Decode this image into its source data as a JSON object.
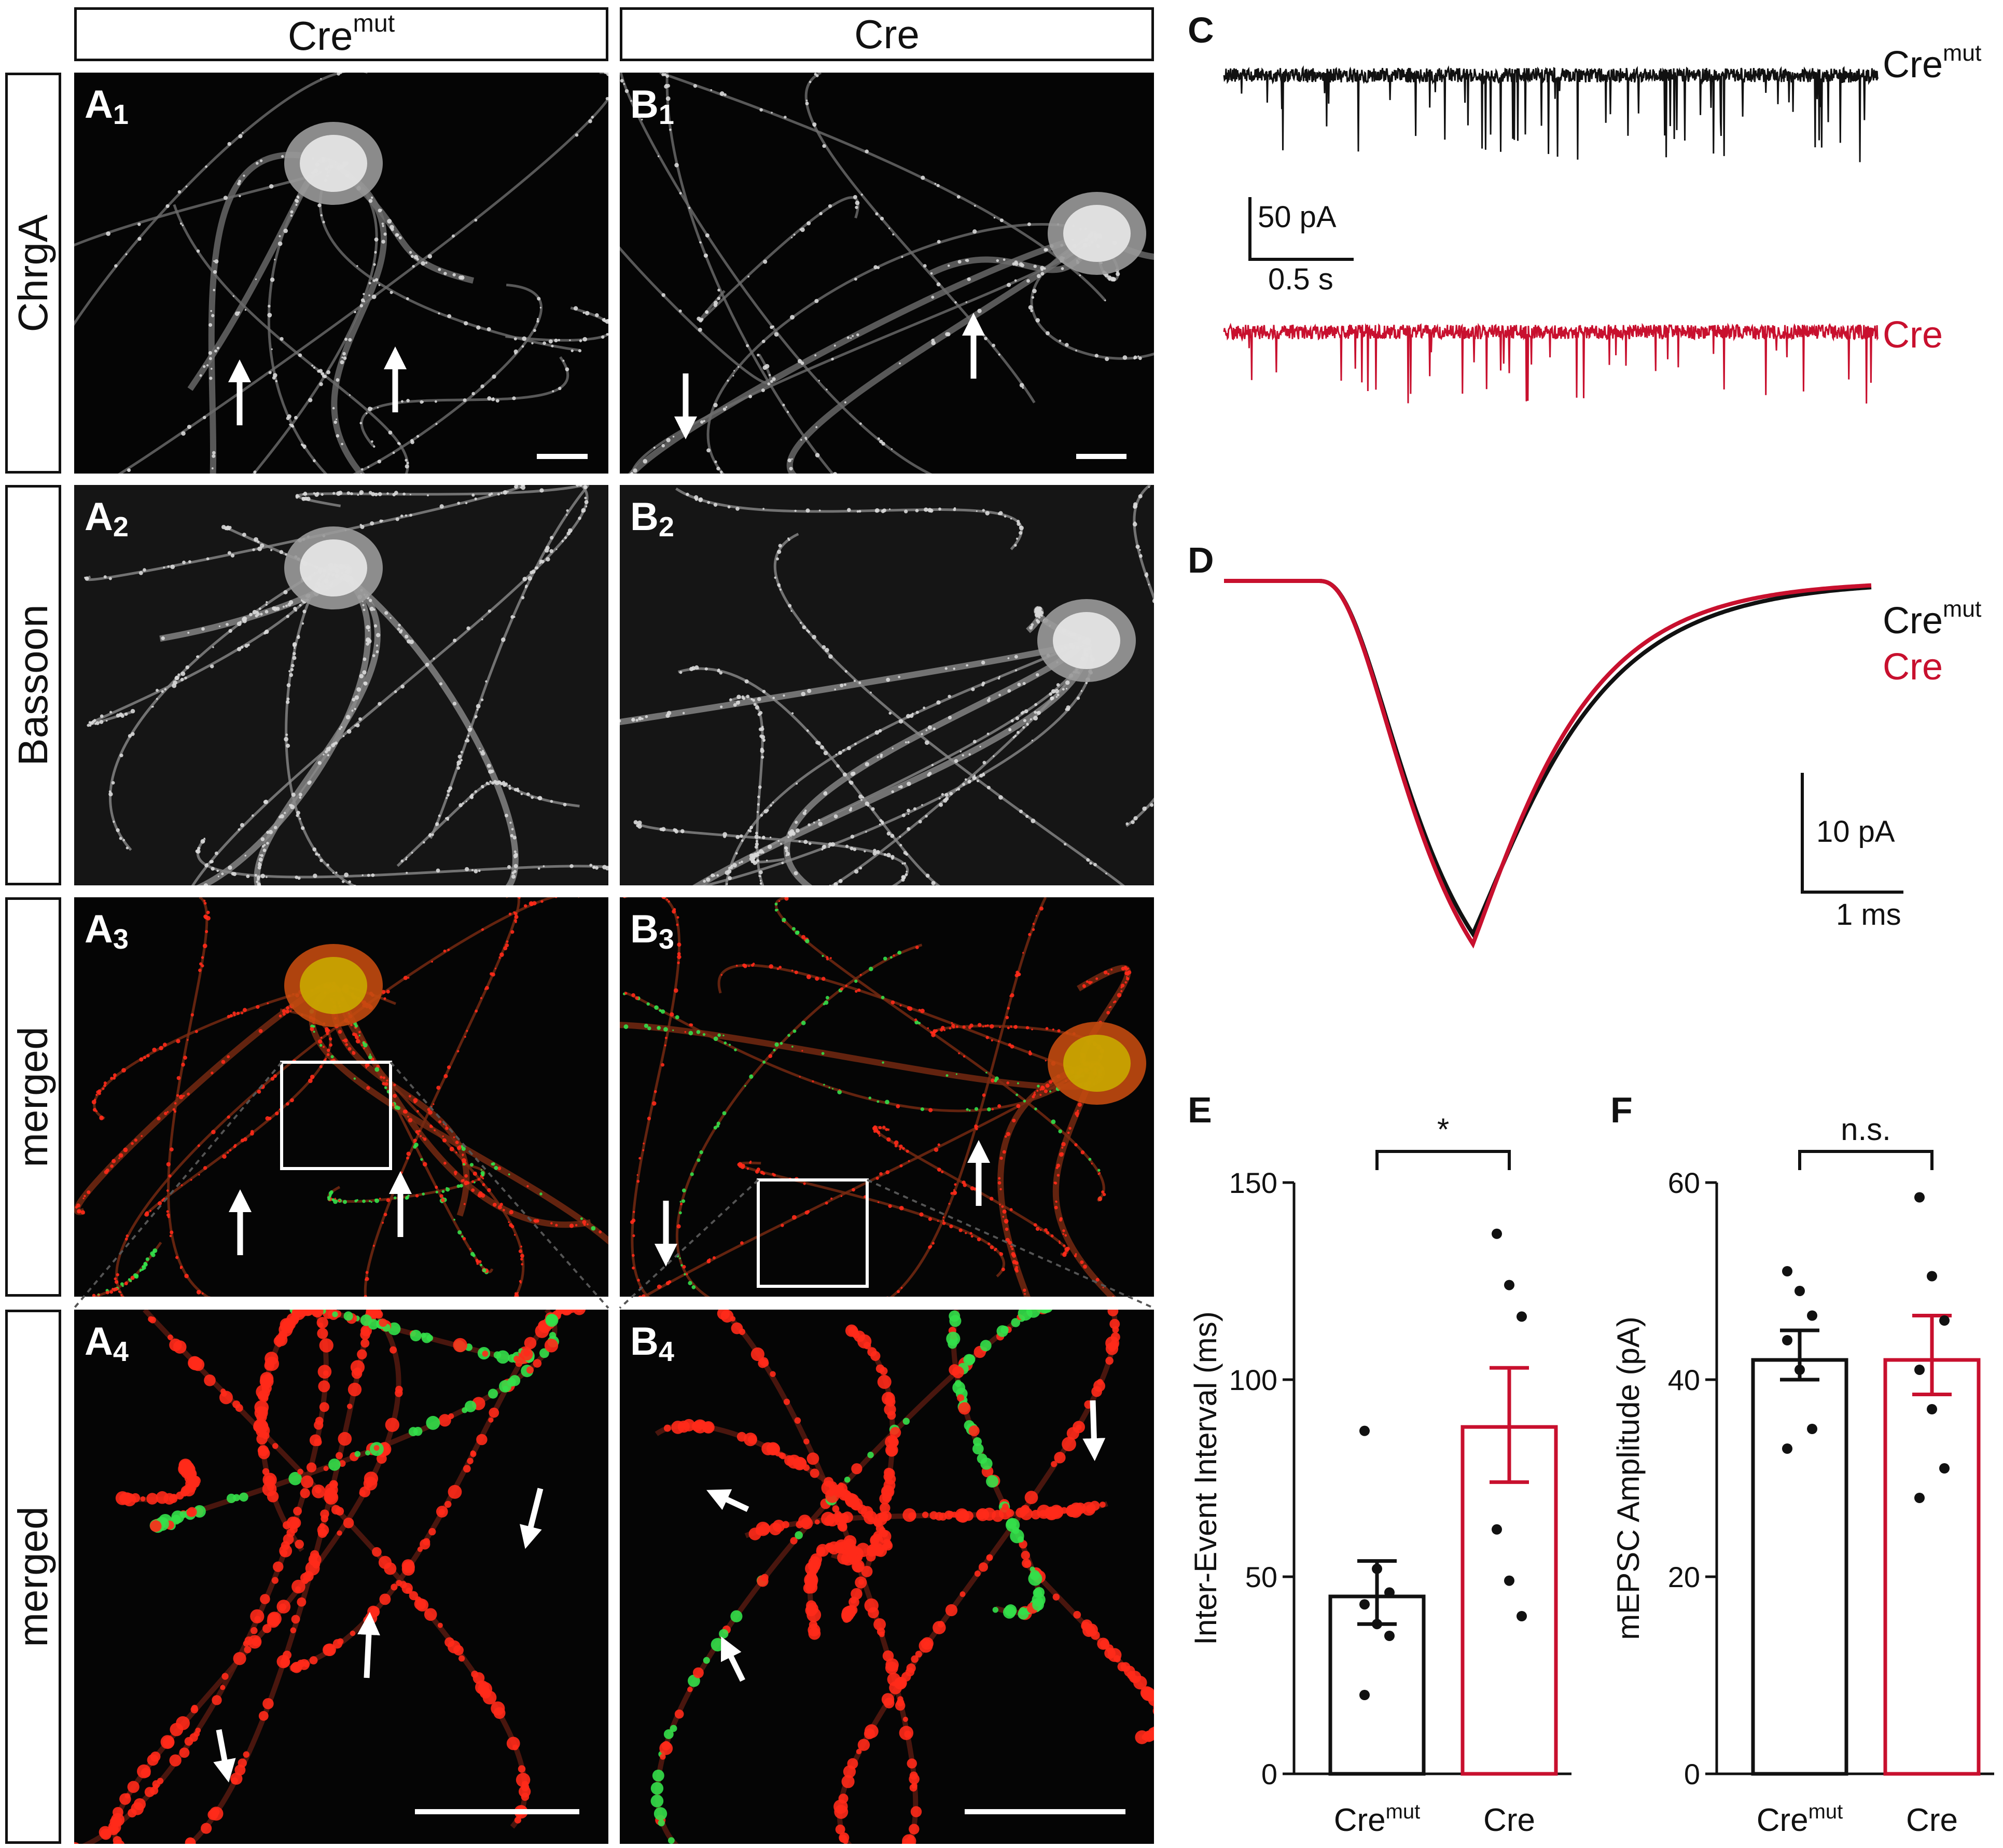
{
  "columns": {
    "left": {
      "base": "Cre",
      "sup": "mut"
    },
    "right": {
      "base": "Cre",
      "sup": ""
    }
  },
  "rows": [
    "ChrgA",
    "Bassoon",
    "merged",
    "merged"
  ],
  "micrograph_labels": {
    "A1": {
      "letter": "A",
      "num": "1"
    },
    "B1": {
      "letter": "B",
      "num": "1"
    },
    "A2": {
      "letter": "A",
      "num": "2"
    },
    "B2": {
      "letter": "B",
      "num": "2"
    },
    "A3": {
      "letter": "A",
      "num": "3"
    },
    "B3": {
      "letter": "B",
      "num": "3"
    },
    "A4": {
      "letter": "A",
      "num": "4"
    },
    "B4": {
      "letter": "B",
      "num": "4"
    }
  },
  "panel_letters": {
    "C": "C",
    "D": "D",
    "E": "E",
    "F": "F"
  },
  "colors": {
    "cremut": "#111111",
    "cre": "#c8102e",
    "red_channel": "#ff2a1a",
    "green_channel": "#33e04a"
  },
  "panel_C": {
    "trace_labels": [
      {
        "base": "Cre",
        "sup": "mut"
      },
      {
        "base": "Cre",
        "sup": ""
      }
    ],
    "scalebar": {
      "y": "50 pA",
      "x": "0.5 s"
    }
  },
  "panel_D": {
    "trace_labels": [
      {
        "base": "Cre",
        "sup": "mut"
      },
      {
        "base": "Cre",
        "sup": ""
      }
    ],
    "scalebar": {
      "y": "10 pA",
      "x": "1 ms"
    }
  },
  "chart_data": [
    {
      "panel": "E",
      "type": "bar",
      "categories": [
        {
          "base": "Cre",
          "sup": "mut"
        },
        {
          "base": "Cre",
          "sup": ""
        }
      ],
      "values": [
        45,
        88
      ],
      "sem": [
        [
          38,
          54
        ],
        [
          74,
          103
        ]
      ],
      "points": [
        [
          87,
          52,
          46,
          43,
          38,
          35,
          20
        ],
        [
          137,
          124,
          116,
          62,
          49,
          40
        ]
      ],
      "ylabel": "Inter-Event Interval (ms)",
      "ylim": [
        0,
        150
      ],
      "yticks": [
        0,
        50,
        100,
        150
      ],
      "significance": "*"
    },
    {
      "panel": "F",
      "type": "bar",
      "categories": [
        {
          "base": "Cre",
          "sup": "mut"
        },
        {
          "base": "Cre",
          "sup": ""
        }
      ],
      "values": [
        42,
        42
      ],
      "sem": [
        [
          40,
          45
        ],
        [
          38.5,
          46.5
        ]
      ],
      "points": [
        [
          51,
          49,
          46.5,
          44,
          41,
          35,
          33
        ],
        [
          58.5,
          50.5,
          46,
          41,
          37,
          31,
          28
        ]
      ],
      "ylabel": "mEPSC  Amplitude (pA)",
      "ylim": [
        0,
        60
      ],
      "yticks": [
        0,
        20,
        40,
        60
      ],
      "significance": "n.s."
    }
  ]
}
